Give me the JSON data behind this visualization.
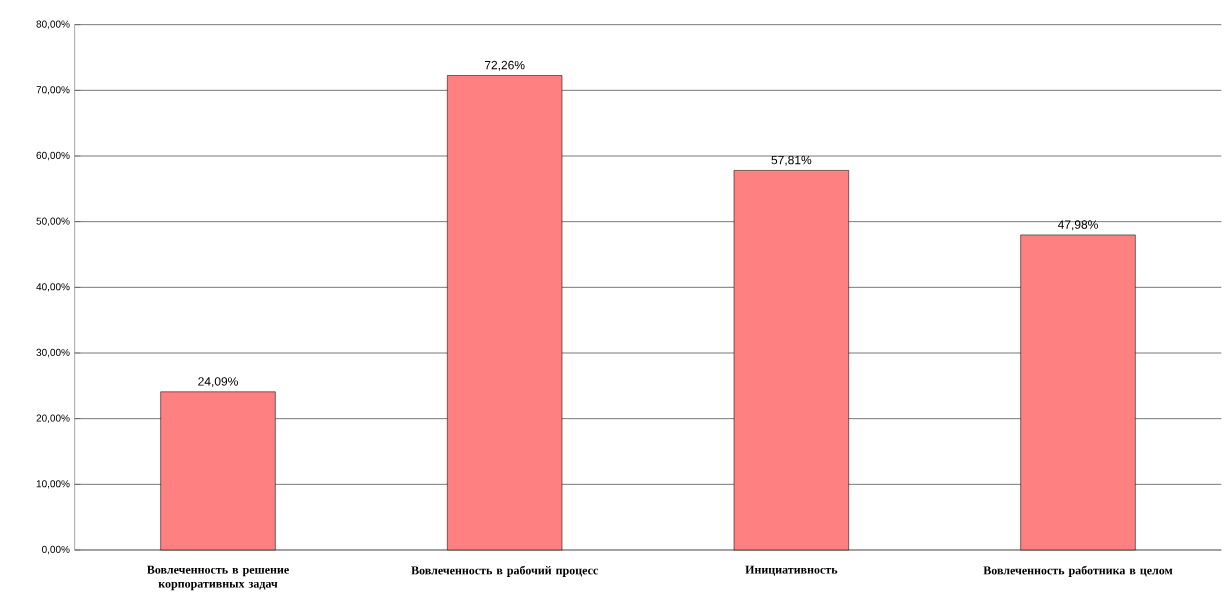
{
  "chart_data": {
    "type": "bar",
    "categories": [
      "Вовлеченность в решение корпоративных  задач",
      "Вовлеченность в рабочий процесс",
      "Инициативность",
      "Вовлеченность работника в целом"
    ],
    "values": [
      24.09,
      72.26,
      57.81,
      47.98
    ],
    "value_labels": [
      "24,09%",
      "72,26%",
      "57,81%",
      "47,98%"
    ],
    "color": "#ff8080",
    "ylim": [
      0,
      80
    ],
    "yticks": [
      {
        "value": 0,
        "label": "0,00%"
      },
      {
        "value": 10,
        "label": "10,00%"
      },
      {
        "value": 20,
        "label": "20,00%"
      },
      {
        "value": 30,
        "label": "30,00%"
      },
      {
        "value": 40,
        "label": "40,00%"
      },
      {
        "value": 50,
        "label": "50,00%"
      },
      {
        "value": 60,
        "label": "60,00%"
      },
      {
        "value": 70,
        "label": "70,00%"
      },
      {
        "value": 80,
        "label": "80,00%"
      }
    ],
    "grid": "y"
  }
}
